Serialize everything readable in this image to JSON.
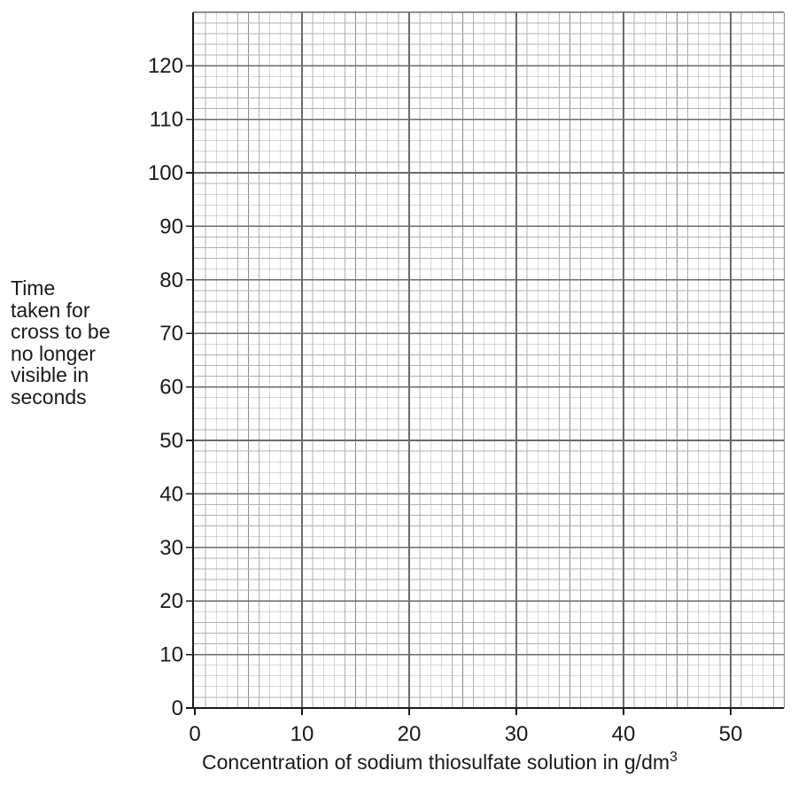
{
  "chart_data": {
    "type": "scatter",
    "title": "",
    "xlabel": "Concentration of sodium thiosulfate solution in g/dm",
    "xlabel_superscript": "3",
    "ylabel_lines": [
      "Time",
      "taken for",
      "cross to be",
      "no longer",
      "visible in",
      "seconds"
    ],
    "xlim": [
      0,
      55
    ],
    "ylim": [
      0,
      130
    ],
    "x_ticks": [
      0,
      10,
      20,
      30,
      40,
      50
    ],
    "y_ticks": [
      0,
      10,
      20,
      30,
      40,
      50,
      60,
      70,
      80,
      90,
      100,
      110,
      120
    ],
    "x_minor_step": 1,
    "y_minor_step": 2,
    "grid": true,
    "series": []
  }
}
